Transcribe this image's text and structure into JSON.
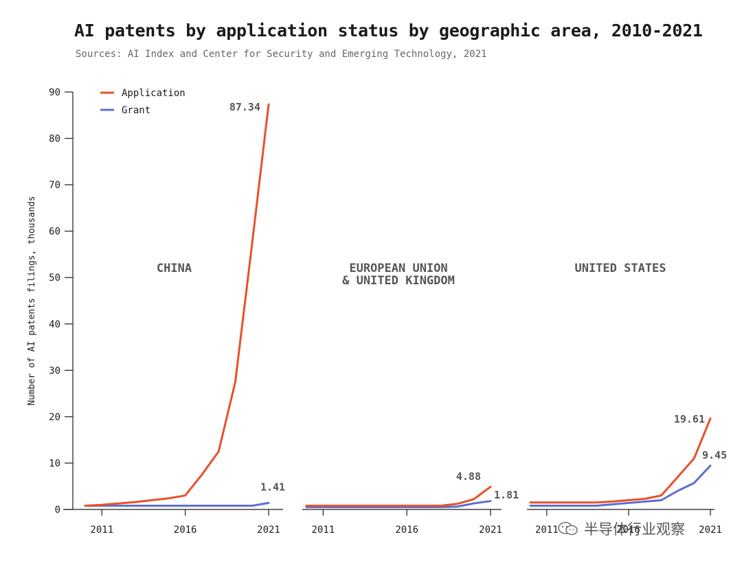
{
  "title": "AI patents by application status by geographic area, 2010-2021",
  "subtitle": "Sources: AI Index and Center for Security and Emerging Technology, 2021",
  "watermark": "半导体行业观察",
  "colors": {
    "application": "#e8502a",
    "grant": "#5b6fd0",
    "axis": "#1a1a1a",
    "panel_label": "#555555"
  },
  "chart_data": {
    "type": "line",
    "ylabel": "Number of AI patents filings, thousands",
    "ylim": [
      0,
      90
    ],
    "yticks": [
      0,
      10,
      20,
      30,
      40,
      50,
      60,
      70,
      80,
      90
    ],
    "xticks": [
      2011,
      2016,
      2021
    ],
    "x": [
      2010,
      2011,
      2012,
      2013,
      2014,
      2015,
      2016,
      2017,
      2018,
      2019,
      2020,
      2021
    ],
    "legend": {
      "position": "top-left",
      "entries": [
        "Application",
        "Grant"
      ]
    },
    "panels": [
      {
        "name": "CHINA",
        "series": [
          {
            "name": "Application",
            "values": [
              0.8,
              1.0,
              1.3,
              1.6,
              2.0,
              2.4,
              3.0,
              7.5,
              12.5,
              27.5,
              57.0,
              87.34
            ]
          },
          {
            "name": "Grant",
            "values": [
              0.8,
              0.8,
              0.8,
              0.8,
              0.8,
              0.8,
              0.8,
              0.8,
              0.8,
              0.8,
              0.8,
              1.41
            ]
          }
        ],
        "labels": {
          "application": "87.34",
          "grant": "1.41"
        }
      },
      {
        "name": "EUROPEAN UNION\n& UNITED KINGDOM",
        "series": [
          {
            "name": "Application",
            "values": [
              0.8,
              0.8,
              0.8,
              0.8,
              0.8,
              0.8,
              0.8,
              0.8,
              0.8,
              1.2,
              2.2,
              4.88
            ]
          },
          {
            "name": "Grant",
            "values": [
              0.5,
              0.5,
              0.5,
              0.5,
              0.5,
              0.5,
              0.5,
              0.5,
              0.5,
              0.6,
              1.3,
              1.81
            ]
          }
        ],
        "labels": {
          "application": "4.88",
          "grant": "1.81"
        }
      },
      {
        "name": "UNITED STATES",
        "series": [
          {
            "name": "Application",
            "values": [
              1.5,
              1.5,
              1.5,
              1.5,
              1.5,
              1.7,
              2.0,
              2.3,
              3.0,
              7.0,
              11.0,
              19.61
            ]
          },
          {
            "name": "Grant",
            "values": [
              0.8,
              0.8,
              0.8,
              0.8,
              0.8,
              1.1,
              1.4,
              1.7,
              2.0,
              4.0,
              5.7,
              9.45
            ]
          }
        ],
        "labels": {
          "application": "19.61",
          "grant": "9.45"
        }
      }
    ]
  }
}
